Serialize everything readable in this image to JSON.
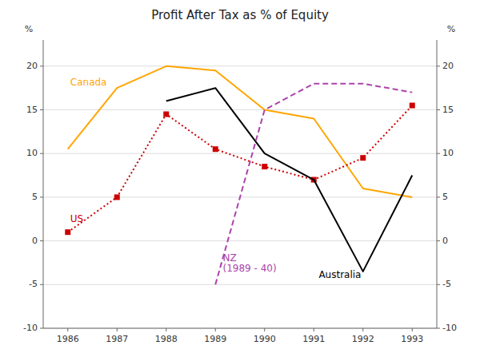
{
  "chart_data": {
    "type": "line",
    "title": "Profit After Tax as % of Equity",
    "ylabel": "%",
    "y2label": "%",
    "series": [
      {
        "name": "Canada",
        "color": "#FFA500",
        "line_style": "solid",
        "x": [
          1986,
          1987,
          1988,
          1989,
          1990,
          1991,
          1992,
          1993
        ],
        "values": [
          10.5,
          17.5,
          20.0,
          19.5,
          15.0,
          14.0,
          6.0,
          5.0
        ]
      },
      {
        "name": "US",
        "color": "#CC0000",
        "line_style": "dotted",
        "marker": "square",
        "x": [
          1986,
          1987,
          1988,
          1989,
          1990,
          1991,
          1992,
          1993
        ],
        "values": [
          1.0,
          5.0,
          14.5,
          10.5,
          8.5,
          7.0,
          9.5,
          15.5
        ]
      },
      {
        "name": "Australia",
        "color": "#000000",
        "line_style": "solid",
        "x": [
          1988,
          1989,
          1990,
          1991,
          1992,
          1993
        ],
        "values": [
          16.0,
          17.5,
          10.0,
          7.0,
          -3.5,
          7.5
        ]
      },
      {
        "name": "NZ",
        "color": "#AA44AA",
        "line_style": "dashed",
        "x": [
          1989,
          1990,
          1991,
          1992,
          1993
        ],
        "values": [
          -5.0,
          15.0,
          18.0,
          18.0,
          17.0
        ]
      }
    ],
    "annotations": [
      {
        "text": "Canada",
        "x": 1986.05,
        "y": 17.8,
        "color": "#FFA500"
      },
      {
        "text": "US",
        "x": 1986.05,
        "y": 2.2,
        "color": "#CC0000"
      },
      {
        "text": "Australia",
        "x": 1991.1,
        "y": -4.2,
        "color": "#000000"
      },
      {
        "text": "NZ\n(1989 - 40)",
        "x": 1989.15,
        "y": -3.5,
        "color": "#AA44AA"
      }
    ],
    "xlim": [
      1985.5,
      1993.5
    ],
    "xticks": [
      1986,
      1987,
      1988,
      1989,
      1990,
      1991,
      1992,
      1993
    ],
    "ylim": [
      -10,
      23
    ],
    "yticks": [
      -10,
      -5,
      0,
      5,
      10,
      15,
      20
    ],
    "y2lim": [
      -10,
      23
    ],
    "y2ticks": [
      -10,
      -5,
      0,
      5,
      10,
      15,
      20
    ],
    "grid": true
  }
}
